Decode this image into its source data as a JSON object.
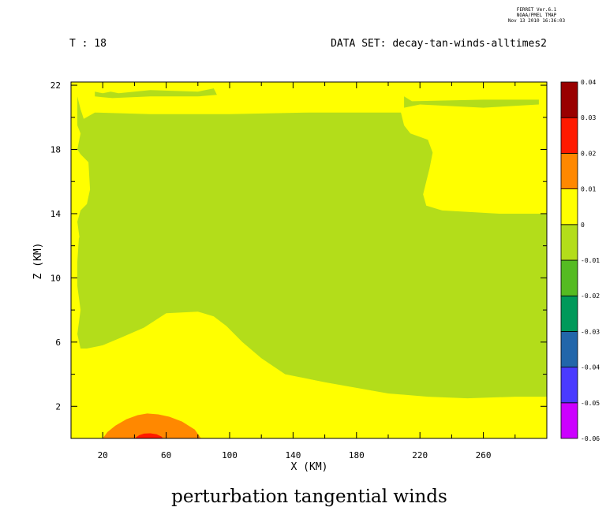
{
  "header": {
    "ferret_stamp": [
      "FERRET Ver.6.1",
      "NOAA/PMEL TMAP",
      "Nov 13 2010 16:36:03"
    ],
    "time_label": "T : 18",
    "dataset_label": "DATA SET: decay-tan-winds-alltimes2"
  },
  "chart_data": {
    "type": "heatmap",
    "title": "perturbation tangential winds",
    "xlabel": "X (KM)",
    "ylabel": "Z (KM)",
    "xlim": [
      0,
      300
    ],
    "ylim": [
      0,
      22.2
    ],
    "xticks": [
      20,
      60,
      100,
      140,
      180,
      220,
      260
    ],
    "yticks": [
      2,
      6,
      10,
      14,
      18,
      22
    ],
    "colorbar": {
      "levels": [
        -0.06,
        -0.05,
        -0.04,
        -0.03,
        -0.02,
        -0.01,
        0,
        0.01,
        0.02,
        0.03,
        0.04
      ],
      "colors": [
        "#cc00ff",
        "#4a3aff",
        "#2266aa",
        "#00995a",
        "#55bb22",
        "#b3dd1a",
        "#ffff00",
        "#ff8800",
        "#ff1a00",
        "#990000"
      ]
    },
    "regions": [
      {
        "name": "negative-region",
        "level_range": [
          -0.01,
          0
        ],
        "color": "#b3dd1a",
        "polygon": [
          [
            4,
            21.3
          ],
          [
            6,
            20.5
          ],
          [
            8,
            19.9
          ],
          [
            15,
            20.3
          ],
          [
            50,
            20.2
          ],
          [
            100,
            20.2
          ],
          [
            150,
            20.3
          ],
          [
            208,
            20.3
          ],
          [
            210,
            19.5
          ],
          [
            214,
            19.0
          ],
          [
            225,
            18.6
          ],
          [
            228,
            17.8
          ],
          [
            226,
            16.8
          ],
          [
            224,
            16
          ],
          [
            222,
            15.2
          ],
          [
            224,
            14.5
          ],
          [
            234,
            14.2
          ],
          [
            270,
            14.0
          ],
          [
            300,
            14.0
          ],
          [
            300,
            2.6
          ],
          [
            280,
            2.6
          ],
          [
            250,
            2.5
          ],
          [
            225,
            2.6
          ],
          [
            200,
            2.8
          ],
          [
            160,
            3.5
          ],
          [
            135,
            4.0
          ],
          [
            120,
            5.0
          ],
          [
            108,
            6.0
          ],
          [
            98,
            7.0
          ],
          [
            90,
            7.6
          ],
          [
            80,
            7.9
          ],
          [
            60,
            7.8
          ],
          [
            46,
            6.9
          ],
          [
            32,
            6.3
          ],
          [
            20,
            5.8
          ],
          [
            10,
            5.6
          ],
          [
            6,
            5.6
          ],
          [
            4,
            6.5
          ],
          [
            6,
            8.0
          ],
          [
            4,
            9.5
          ],
          [
            4,
            11.0
          ],
          [
            5,
            12.5
          ],
          [
            12,
            12.9
          ],
          [
            16,
            12.6
          ],
          [
            13,
            12.2
          ],
          [
            6,
            12.0
          ],
          [
            4,
            13.5
          ],
          [
            6,
            14.2
          ],
          [
            10,
            14.6
          ],
          [
            12,
            15.5
          ],
          [
            11,
            17.2
          ],
          [
            6,
            17.7
          ],
          [
            4,
            18.0
          ],
          [
            6,
            19.0
          ],
          [
            4,
            19.5
          ]
        ]
      },
      {
        "name": "strip-upper",
        "level_range": [
          -0.01,
          0
        ],
        "color": "#b3dd1a",
        "polygon": [
          [
            15,
            21.6
          ],
          [
            20,
            21.5
          ],
          [
            25,
            21.6
          ],
          [
            30,
            21.5
          ],
          [
            50,
            21.7
          ],
          [
            80,
            21.6
          ],
          [
            90,
            21.8
          ],
          [
            92,
            21.4
          ],
          [
            80,
            21.3
          ],
          [
            50,
            21.3
          ],
          [
            26,
            21.2
          ],
          [
            15,
            21.3
          ]
        ]
      },
      {
        "name": "strip-right",
        "level_range": [
          -0.01,
          0
        ],
        "color": "#b3dd1a",
        "polygon": [
          [
            210,
            21.3
          ],
          [
            215,
            21.0
          ],
          [
            260,
            21.1
          ],
          [
            295,
            21.1
          ],
          [
            295,
            20.8
          ],
          [
            260,
            20.6
          ],
          [
            220,
            20.8
          ],
          [
            210,
            20.6
          ]
        ]
      },
      {
        "name": "positive-0.01",
        "level_range": [
          0.01,
          0.02
        ],
        "color": "#ff8800",
        "polygon": [
          [
            20,
            0
          ],
          [
            23,
            0.4
          ],
          [
            28,
            0.8
          ],
          [
            35,
            1.2
          ],
          [
            42,
            1.45
          ],
          [
            48,
            1.55
          ],
          [
            55,
            1.5
          ],
          [
            62,
            1.35
          ],
          [
            70,
            1.05
          ],
          [
            78,
            0.55
          ],
          [
            82,
            0
          ]
        ]
      },
      {
        "name": "positive-0.02",
        "level_range": [
          0.02,
          0.03
        ],
        "color": "#ff1a00",
        "polygon": [
          [
            40,
            0
          ],
          [
            43,
            0.2
          ],
          [
            46,
            0.3
          ],
          [
            50,
            0.32
          ],
          [
            54,
            0.26
          ],
          [
            57,
            0.12
          ],
          [
            58,
            0
          ]
        ]
      }
    ]
  }
}
